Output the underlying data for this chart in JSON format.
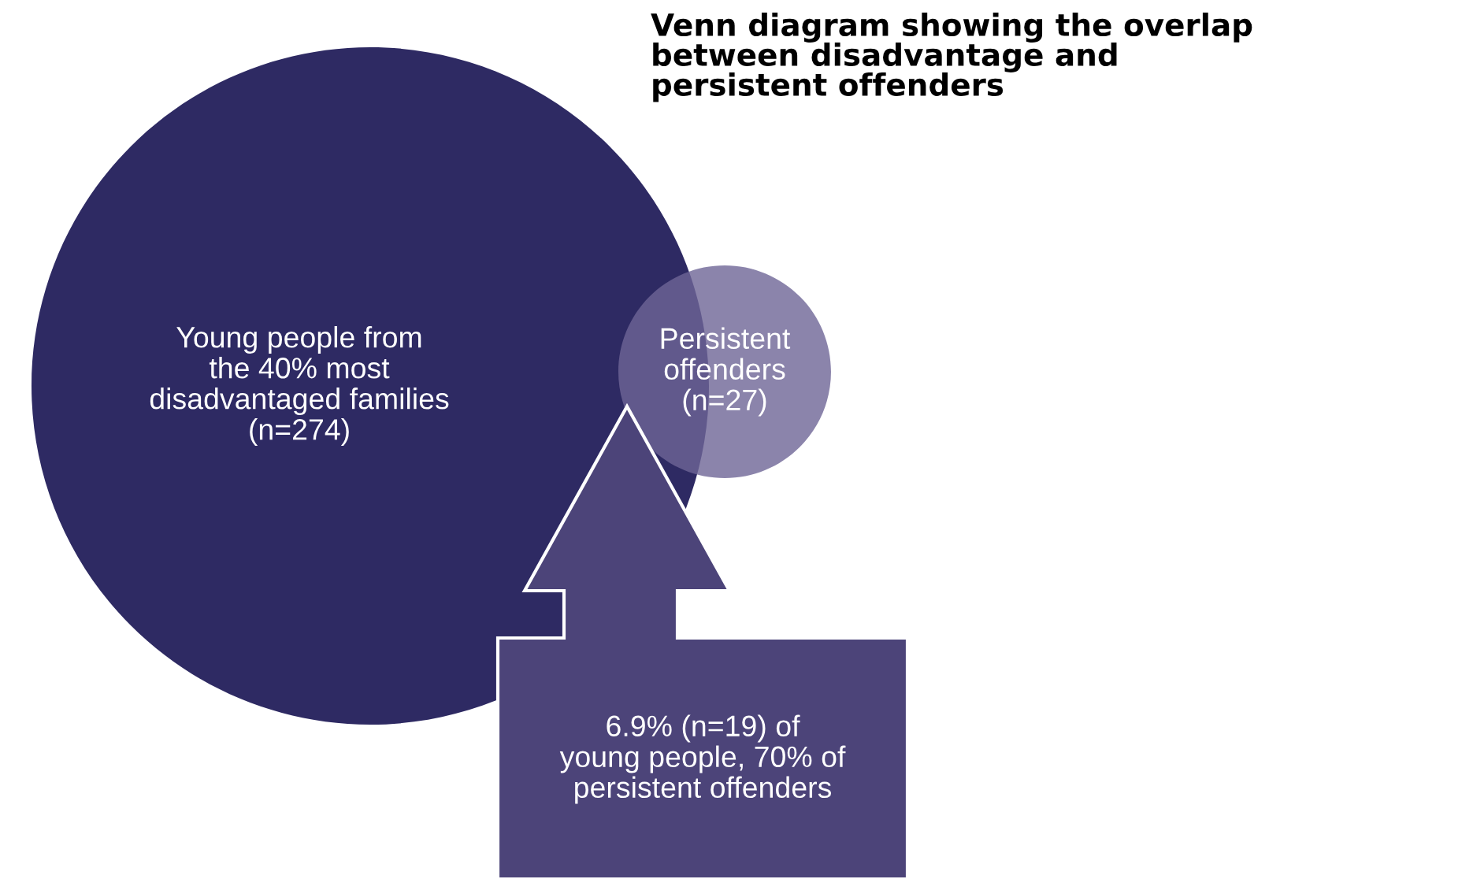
{
  "chart_data": {
    "type": "other",
    "title": "Venn diagram showing the overlap\nbetween disadvantage and\npersistent offenders",
    "categories": [
      "Young people from\nthe 40% most\ndisadvantaged families",
      "Persistent\noffenders"
    ],
    "values": [
      274,
      27
    ],
    "value_labels": [
      "(n=274)",
      "(n=27)"
    ],
    "colors": [
      "#2e2a63",
      "#6e6596"
    ],
    "annotations": [
      "6.9% (n=19) of\nyoung people, 70% of\npersistent offenders"
    ]
  }
}
